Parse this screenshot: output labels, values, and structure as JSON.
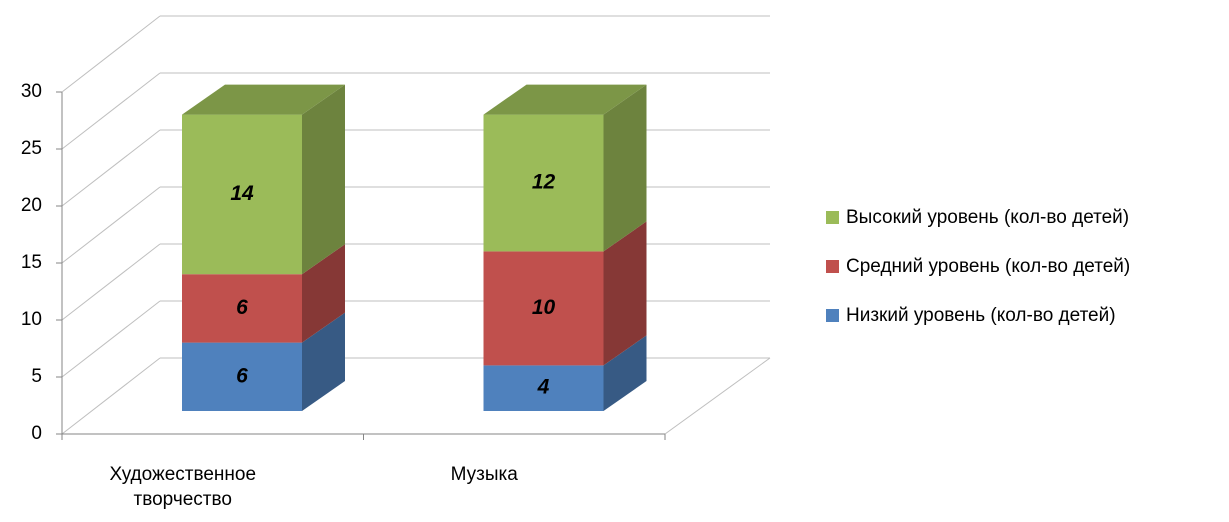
{
  "chart_data": {
    "type": "bar",
    "stacked": true,
    "categories": [
      "Художественное творчество",
      "Музыка"
    ],
    "series": [
      {
        "name": "Низкий уровень (кол-во детей)",
        "color": "#4f81bd",
        "values": [
          6,
          4
        ]
      },
      {
        "name": "Средний уровень (кол-во детей)",
        "color": "#c0504d",
        "values": [
          6,
          10
        ]
      },
      {
        "name": "Высокий уровень (кол-во детей)",
        "color": "#9bbb59",
        "values": [
          14,
          12
        ]
      }
    ],
    "ylim": [
      0,
      30
    ],
    "yticks": [
      0,
      5,
      10,
      15,
      20,
      25,
      30
    ],
    "grid": true,
    "legend": "right"
  }
}
